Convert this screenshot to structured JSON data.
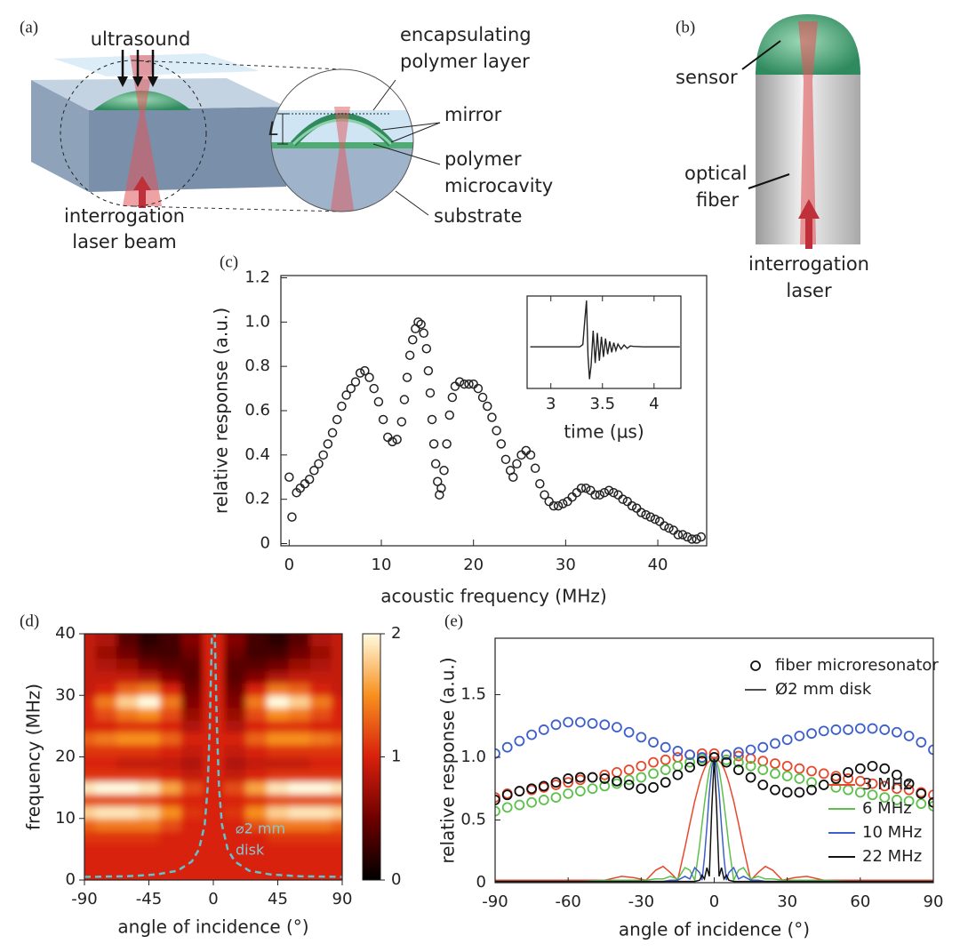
{
  "panel_labels": [
    "(a)",
    "(b)",
    "(c)",
    "(d)",
    "(e)"
  ],
  "diagram_a": {
    "labels": [
      "ultrasound",
      "encapsulating",
      "polymer layer",
      "mirror",
      "polymer",
      "microcavity",
      "substrate",
      "interrogation",
      "laser beam",
      "L"
    ]
  },
  "diagram_b": {
    "labels": [
      "sensor",
      "optical",
      "fiber",
      "interrogation",
      "laser"
    ]
  },
  "chart_data": [
    {
      "type": "scatter",
      "xlabel": "acoustic frequency (MHz)",
      "ylabel": "relative response (a.u.)",
      "xlim": [
        -0.9,
        45.3
      ],
      "ylim": [
        -0.01,
        1.21
      ],
      "xticks": [
        0,
        10,
        20,
        30,
        40
      ],
      "yticks": [
        0,
        0.2,
        0.4,
        0.6,
        0.8,
        {
          "value": 1,
          "label": "1.0"
        },
        1.2
      ],
      "color": "#222222",
      "x": [
        0,
        0.3,
        0.8,
        1.2,
        1.7,
        2.2,
        2.7,
        3.2,
        3.7,
        4.2,
        4.7,
        5.2,
        5.7,
        6.2,
        6.7,
        7.2,
        7.7,
        8.2,
        8.7,
        9.2,
        9.7,
        10.2,
        10.7,
        11.2,
        11.7,
        12.2,
        12.5,
        12.8,
        13.1,
        13.4,
        13.7,
        14,
        14.3,
        14.6,
        14.9,
        15.1,
        15.3,
        15.5,
        15.7,
        15.9,
        16.1,
        16.3,
        16.5,
        16.8,
        17.1,
        17.4,
        17.7,
        18,
        18.5,
        19,
        19.5,
        20,
        20.5,
        21,
        21.5,
        22,
        22.5,
        23,
        23.5,
        24,
        24.3,
        24.7,
        25.2,
        25.7,
        26.2,
        26.7,
        27.2,
        27.7,
        28.2,
        28.7,
        29.2,
        29.7,
        30.2,
        30.7,
        31.2,
        31.7,
        32.2,
        32.7,
        33.2,
        33.7,
        34.2,
        34.7,
        35.2,
        35.7,
        36.2,
        36.7,
        37.2,
        37.7,
        38.2,
        38.7,
        39.2,
        39.7,
        40.2,
        40.7,
        41.2,
        41.7,
        42.2,
        42.7,
        43.2,
        43.7,
        44.2,
        44.7
      ],
      "values": [
        0.3,
        0.12,
        0.23,
        0.25,
        0.27,
        0.29,
        0.33,
        0.36,
        0.4,
        0.45,
        0.5,
        0.56,
        0.62,
        0.67,
        0.7,
        0.73,
        0.77,
        0.78,
        0.75,
        0.7,
        0.64,
        0.56,
        0.48,
        0.46,
        0.47,
        0.55,
        0.65,
        0.75,
        0.85,
        0.92,
        0.97,
        1.0,
        0.99,
        0.95,
        0.88,
        0.78,
        0.68,
        0.56,
        0.45,
        0.36,
        0.28,
        0.22,
        0.25,
        0.33,
        0.45,
        0.58,
        0.66,
        0.71,
        0.73,
        0.72,
        0.72,
        0.72,
        0.7,
        0.66,
        0.62,
        0.57,
        0.51,
        0.45,
        0.38,
        0.33,
        0.3,
        0.36,
        0.4,
        0.42,
        0.4,
        0.34,
        0.27,
        0.22,
        0.19,
        0.17,
        0.17,
        0.18,
        0.19,
        0.21,
        0.23,
        0.25,
        0.25,
        0.24,
        0.22,
        0.22,
        0.23,
        0.24,
        0.23,
        0.22,
        0.2,
        0.19,
        0.17,
        0.16,
        0.14,
        0.13,
        0.12,
        0.11,
        0.1,
        0.08,
        0.07,
        0.06,
        0.04,
        0.04,
        0.03,
        0.02,
        0.02,
        0.03
      ]
    },
    {
      "type": "line",
      "xlabel": "time (µs)",
      "xlim": [
        2.77,
        4.26
      ],
      "ylim": [
        -0.9,
        1.1
      ],
      "xticks": [
        3,
        3.5,
        4
      ],
      "color": "#222222",
      "x": [
        2.8,
        2.9,
        3.0,
        3.1,
        3.2,
        3.28,
        3.31,
        3.33,
        3.345,
        3.36,
        3.375,
        3.39,
        3.41,
        3.43,
        3.45,
        3.47,
        3.49,
        3.51,
        3.53,
        3.55,
        3.57,
        3.59,
        3.61,
        3.63,
        3.65,
        3.68,
        3.71,
        3.74,
        3.77,
        3.8,
        3.9,
        4.0,
        4.1,
        4.2,
        4.25
      ],
      "values": [
        0,
        0,
        0,
        0,
        0,
        0,
        0.05,
        0.6,
        1.0,
        -0.2,
        -0.7,
        -0.4,
        0.35,
        -0.35,
        0.3,
        -0.3,
        0.22,
        -0.22,
        0.18,
        -0.16,
        0.12,
        -0.12,
        0.09,
        -0.08,
        0.06,
        -0.05,
        0.04,
        -0.03,
        0.02,
        0.01,
        0,
        0,
        0,
        0,
        0
      ]
    },
    {
      "type": "heatmap",
      "xlabel": "angle of incidence (°)",
      "ylabel": "frequency (MHz)",
      "xlim": [
        -90,
        90
      ],
      "ylim": [
        0,
        40
      ],
      "xticks": [
        -90,
        -45,
        0,
        45,
        90
      ],
      "yticks": [
        0,
        10,
        20,
        30,
        40
      ],
      "clim": [
        0,
        2
      ],
      "cticks": [
        0,
        1,
        2
      ],
      "colormap": [
        "#000000",
        "#6e0000",
        "#d8200c",
        "#f7901e",
        "#fffbe0"
      ],
      "x": [
        -90,
        -75,
        -60,
        -45,
        -30,
        -15,
        0,
        15,
        30,
        45,
        60,
        75,
        90
      ],
      "y": [
        1,
        3,
        5,
        7,
        9,
        11,
        13,
        15,
        17,
        19,
        21,
        23,
        25,
        27,
        29,
        31,
        33,
        35,
        37,
        39
      ],
      "values": [
        [
          1.0,
          1.0,
          1.0,
          1.0,
          1.0,
          1.0,
          1.0,
          1.0,
          1.0,
          1.0,
          1.0,
          1.0,
          1.0
        ],
        [
          1.0,
          1.0,
          1.0,
          1.0,
          1.0,
          1.0,
          1.0,
          1.0,
          1.0,
          1.0,
          1.0,
          1.0,
          1.0
        ],
        [
          1.0,
          1.0,
          1.0,
          1.0,
          1.0,
          1.0,
          1.0,
          1.0,
          1.0,
          1.0,
          1.0,
          1.0,
          1.0
        ],
        [
          1.1,
          1.1,
          1.1,
          1.1,
          1.0,
          1.0,
          1.0,
          1.0,
          1.0,
          1.1,
          1.1,
          1.1,
          1.1
        ],
        [
          1.3,
          1.4,
          1.4,
          1.4,
          1.2,
          1.0,
          1.0,
          1.0,
          1.2,
          1.4,
          1.4,
          1.4,
          1.3
        ],
        [
          1.8,
          1.9,
          1.9,
          1.8,
          1.5,
          1.1,
          1.0,
          1.1,
          1.5,
          1.8,
          1.9,
          1.9,
          1.8
        ],
        [
          1.2,
          1.2,
          1.2,
          1.2,
          1.1,
          1.0,
          1.0,
          1.0,
          1.1,
          1.2,
          1.2,
          1.2,
          1.2
        ],
        [
          1.9,
          2.0,
          2.0,
          1.9,
          1.6,
          1.2,
          1.0,
          1.2,
          1.6,
          1.9,
          2.0,
          2.0,
          1.9
        ],
        [
          1.1,
          1.1,
          1.1,
          1.1,
          1.0,
          0.9,
          1.0,
          0.9,
          1.0,
          1.1,
          1.1,
          1.1,
          1.1
        ],
        [
          1.0,
          1.0,
          0.9,
          0.9,
          0.9,
          0.8,
          1.0,
          0.8,
          0.9,
          0.9,
          0.9,
          1.0,
          1.0
        ],
        [
          1.1,
          1.1,
          1.1,
          1.1,
          1.0,
          0.9,
          1.0,
          0.9,
          1.0,
          1.1,
          1.1,
          1.1,
          1.1
        ],
        [
          1.3,
          1.4,
          1.5,
          1.5,
          1.3,
          1.0,
          1.0,
          1.0,
          1.3,
          1.5,
          1.5,
          1.4,
          1.3
        ],
        [
          1.0,
          1.0,
          1.1,
          1.1,
          1.0,
          0.8,
          1.0,
          0.8,
          1.0,
          1.1,
          1.1,
          1.0,
          1.0
        ],
        [
          1.0,
          1.2,
          1.4,
          1.5,
          1.2,
          0.7,
          1.0,
          0.7,
          1.2,
          1.5,
          1.4,
          1.2,
          1.0
        ],
        [
          1.0,
          1.4,
          1.8,
          2.0,
          1.4,
          0.6,
          1.0,
          0.6,
          1.4,
          2.0,
          1.8,
          1.4,
          1.0
        ],
        [
          0.9,
          1.0,
          1.3,
          1.4,
          1.0,
          0.5,
          1.0,
          0.5,
          1.0,
          1.4,
          1.3,
          1.0,
          0.9
        ],
        [
          0.9,
          0.9,
          0.9,
          0.8,
          0.6,
          0.4,
          1.0,
          0.4,
          0.6,
          0.8,
          0.9,
          0.9,
          0.9
        ],
        [
          0.9,
          0.8,
          0.7,
          0.5,
          0.4,
          0.4,
          1.0,
          0.4,
          0.4,
          0.5,
          0.7,
          0.8,
          0.9
        ],
        [
          0.9,
          0.7,
          0.5,
          0.3,
          0.3,
          0.5,
          1.0,
          0.5,
          0.3,
          0.3,
          0.5,
          0.7,
          0.9
        ],
        [
          0.9,
          0.8,
          0.4,
          0.2,
          0.3,
          0.6,
          1.0,
          0.6,
          0.3,
          0.2,
          0.4,
          0.8,
          0.9
        ]
      ],
      "curve": {
        "color": "#5fc3d0",
        "x": [
          -90,
          -60,
          -40,
          -25,
          -15,
          -10,
          -6,
          -4,
          -2.5,
          -1.5,
          -1,
          1,
          1.5,
          2.5,
          4,
          6,
          10,
          15,
          25,
          40,
          60,
          90
        ],
        "y": [
          0.5,
          0.6,
          0.9,
          1.5,
          3,
          5,
          9,
          15,
          25,
          35,
          40,
          40,
          35,
          25,
          15,
          9,
          5,
          3,
          1.5,
          0.9,
          0.6,
          0.5
        ]
      },
      "annotation": [
        "⌀2 mm",
        "disk"
      ]
    },
    {
      "type": "scatter",
      "xlabel": "angle of incidence (°)",
      "ylabel": "relative response (a.u.)",
      "xlim": [
        -90,
        90
      ],
      "ylim": [
        0,
        1.95
      ],
      "xticks": [
        -90,
        -60,
        -30,
        0,
        30,
        60,
        90
      ],
      "yticks": [
        0,
        0.5,
        {
          "value": 1,
          "label": "1.0"
        },
        1.5
      ],
      "legend_labels": [
        "fiber microresonator",
        "Ø2 mm disk"
      ],
      "x": [
        -90,
        -85,
        -80,
        -75,
        -70,
        -65,
        -60,
        -55,
        -50,
        -45,
        -40,
        -35,
        -30,
        -25,
        -20,
        -15,
        -10,
        -5,
        0,
        5,
        10,
        15,
        20,
        25,
        30,
        35,
        40,
        45,
        50,
        55,
        60,
        65,
        70,
        75,
        80,
        85,
        90
      ],
      "disk_x": [
        -90,
        -70,
        -55,
        -45,
        -38,
        -33,
        -28,
        -24,
        -21,
        -18,
        -15,
        -12,
        -10,
        -8,
        -6,
        -5,
        -4,
        -3,
        -2,
        -1,
        0,
        1,
        2,
        3,
        4,
        5,
        6,
        8,
        10,
        12,
        15,
        18,
        21,
        24,
        28,
        33,
        38,
        45,
        55,
        70,
        90
      ],
      "series": [
        {
          "name": "3 MHz",
          "color": "#e8482c",
          "values": [
            0.68,
            0.71,
            0.73,
            0.74,
            0.76,
            0.78,
            0.8,
            0.82,
            0.84,
            0.86,
            0.88,
            0.9,
            0.93,
            0.96,
            0.98,
            1.0,
            1.02,
            1.03,
            1.03,
            1.02,
            1.01,
            0.99,
            0.97,
            0.95,
            0.93,
            0.91,
            0.89,
            0.87,
            0.85,
            0.83,
            0.81,
            0.79,
            0.77,
            0.75,
            0.74,
            0.72,
            0.7
          ],
          "disk_values": [
            0.02,
            0.02,
            0.02,
            0.02,
            0.05,
            0.04,
            0.02,
            0.1,
            0.13,
            0.08,
            0.02,
            0.28,
            0.47,
            0.65,
            0.8,
            0.86,
            0.91,
            0.95,
            0.97,
            0.99,
            1,
            0.99,
            0.97,
            0.95,
            0.91,
            0.86,
            0.8,
            0.65,
            0.47,
            0.28,
            0.02,
            0.08,
            0.13,
            0.1,
            0.02,
            0.04,
            0.05,
            0.02,
            0.02,
            0.02,
            0.02
          ]
        },
        {
          "name": "6 MHz",
          "color": "#5cc04a",
          "values": [
            0.57,
            0.6,
            0.62,
            0.64,
            0.66,
            0.68,
            0.71,
            0.73,
            0.75,
            0.77,
            0.79,
            0.82,
            0.84,
            0.87,
            0.9,
            0.93,
            0.96,
            0.99,
            1.0,
            0.98,
            0.96,
            0.93,
            0.9,
            0.87,
            0.85,
            0.83,
            0.8,
            0.78,
            0.76,
            0.74,
            0.72,
            0.7,
            0.68,
            0.66,
            0.65,
            0.63,
            0.61
          ],
          "disk_values": [
            0.01,
            0.01,
            0.01,
            0.02,
            0.02,
            0.02,
            0.02,
            0.03,
            0.03,
            0.05,
            0.03,
            0.12,
            0.1,
            0.02,
            0.3,
            0.47,
            0.63,
            0.78,
            0.9,
            0.97,
            1,
            0.97,
            0.9,
            0.78,
            0.63,
            0.47,
            0.3,
            0.02,
            0.1,
            0.12,
            0.03,
            0.05,
            0.03,
            0.03,
            0.02,
            0.02,
            0.02,
            0.02,
            0.01,
            0.01,
            0.01
          ]
        },
        {
          "name": "10 MHz",
          "color": "#3d5fc9",
          "values": [
            1.03,
            1.08,
            1.13,
            1.18,
            1.22,
            1.26,
            1.28,
            1.28,
            1.27,
            1.26,
            1.24,
            1.2,
            1.16,
            1.12,
            1.08,
            1.05,
            1.02,
            1.0,
            1.0,
            1.02,
            1.04,
            1.06,
            1.08,
            1.11,
            1.14,
            1.17,
            1.19,
            1.21,
            1.22,
            1.22,
            1.23,
            1.23,
            1.22,
            1.2,
            1.17,
            1.12,
            1.06
          ],
          "disk_values": [
            0.01,
            0.01,
            0.01,
            0.01,
            0.01,
            0.01,
            0.01,
            0.01,
            0.01,
            0.02,
            0.02,
            0.05,
            0.03,
            0.12,
            0.08,
            0.02,
            0.2,
            0.45,
            0.72,
            0.92,
            1,
            0.92,
            0.72,
            0.45,
            0.2,
            0.02,
            0.08,
            0.12,
            0.03,
            0.05,
            0.02,
            0.02,
            0.01,
            0.01,
            0.01,
            0.01,
            0.01,
            0.01,
            0.01,
            0.01,
            0.01
          ]
        },
        {
          "name": "22 MHz",
          "color": "#111111",
          "values": [
            0.66,
            0.7,
            0.73,
            0.75,
            0.77,
            0.8,
            0.83,
            0.84,
            0.84,
            0.83,
            0.81,
            0.78,
            0.75,
            0.76,
            0.8,
            0.86,
            0.92,
            0.97,
            1.0,
            0.96,
            0.9,
            0.84,
            0.78,
            0.74,
            0.72,
            0.72,
            0.74,
            0.78,
            0.83,
            0.88,
            0.91,
            0.93,
            0.91,
            0.86,
            0.79,
            0.71,
            0.64
          ],
          "disk_values": [
            0.01,
            0.01,
            0.01,
            0.01,
            0.01,
            0.01,
            0.01,
            0.01,
            0.01,
            0.01,
            0.01,
            0.01,
            0.01,
            0.01,
            0.02,
            0.06,
            0.03,
            0.12,
            0.05,
            0.6,
            1,
            0.6,
            0.05,
            0.12,
            0.03,
            0.06,
            0.02,
            0.01,
            0.01,
            0.01,
            0.01,
            0.01,
            0.01,
            0.01,
            0.01,
            0.01,
            0.01,
            0.01,
            0.01,
            0.01,
            0.01
          ]
        }
      ]
    }
  ]
}
